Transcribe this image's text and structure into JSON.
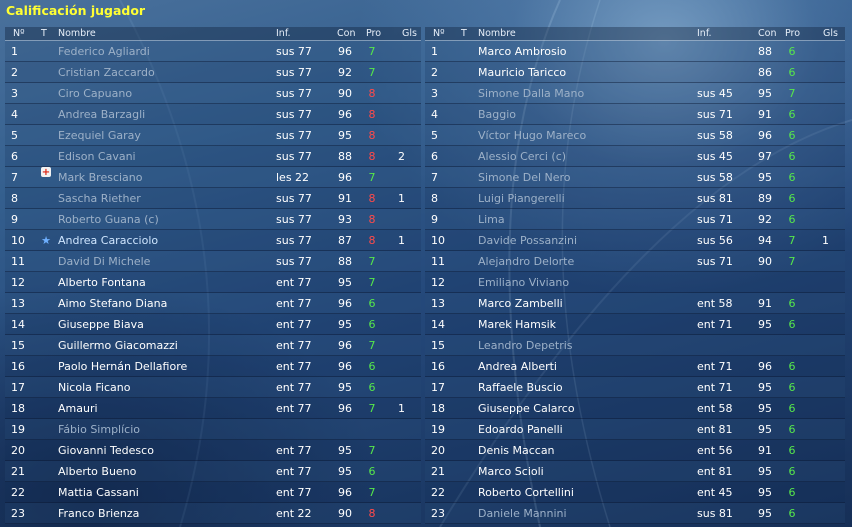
{
  "title": "Calificación jugador",
  "columns": {
    "num": "Nº",
    "t": "T",
    "name": "Nombre",
    "inf": "Inf.",
    "con": "Con",
    "pro": "Pro",
    "gls": "Gls"
  },
  "colors": {
    "title": "#ffff33",
    "pro_high": "#56e84b",
    "pro_low": "#ff4a4a",
    "dim_text": "#9db1c8",
    "selected_text": "#cfe6ff"
  },
  "left_team": [
    {
      "num": "1",
      "icon": "",
      "name": "Federico Agliardi",
      "inf": "sus 77",
      "con": "96",
      "pro": "7",
      "gls": "",
      "style": "dim"
    },
    {
      "num": "2",
      "icon": "",
      "name": "Cristian Zaccardo",
      "inf": "sus 77",
      "con": "92",
      "pro": "7",
      "gls": "",
      "style": "dim"
    },
    {
      "num": "3",
      "icon": "",
      "name": "Ciro Capuano",
      "inf": "sus 77",
      "con": "90",
      "pro": "8",
      "gls": "",
      "style": "dim"
    },
    {
      "num": "4",
      "icon": "",
      "name": "Andrea Barzagli",
      "inf": "sus 77",
      "con": "96",
      "pro": "8",
      "gls": "",
      "style": "dim"
    },
    {
      "num": "5",
      "icon": "",
      "name": "Ezequiel Garay",
      "inf": "sus 77",
      "con": "95",
      "pro": "8",
      "gls": "",
      "style": "dim"
    },
    {
      "num": "6",
      "icon": "",
      "name": "Edison Cavani",
      "inf": "sus 77",
      "con": "88",
      "pro": "8",
      "gls": "2",
      "style": "dim"
    },
    {
      "num": "7",
      "icon": "injury-icon",
      "name": "Mark Bresciano",
      "inf": "les 22",
      "con": "96",
      "pro": "7",
      "gls": "",
      "style": "dim"
    },
    {
      "num": "8",
      "icon": "",
      "name": "Sascha Riether",
      "inf": "sus 77",
      "con": "91",
      "pro": "8",
      "gls": "1",
      "style": "dim"
    },
    {
      "num": "9",
      "icon": "",
      "name": "Roberto Guana (c)",
      "inf": "sus 77",
      "con": "93",
      "pro": "8",
      "gls": "",
      "style": "dim"
    },
    {
      "num": "10",
      "icon": "star-icon",
      "name": "Andrea Caracciolo",
      "inf": "sus 77",
      "con": "87",
      "pro": "8",
      "gls": "1",
      "style": "sel"
    },
    {
      "num": "11",
      "icon": "",
      "name": "David Di Michele",
      "inf": "sus 77",
      "con": "88",
      "pro": "7",
      "gls": "",
      "style": "dim"
    },
    {
      "num": "12",
      "icon": "",
      "name": "Alberto Fontana",
      "inf": "ent 77",
      "con": "95",
      "pro": "7",
      "gls": "",
      "style": "bright"
    },
    {
      "num": "13",
      "icon": "",
      "name": "Aimo Stefano Diana",
      "inf": "ent 77",
      "con": "96",
      "pro": "6",
      "gls": "",
      "style": "bright"
    },
    {
      "num": "14",
      "icon": "",
      "name": "Giuseppe Biava",
      "inf": "ent 77",
      "con": "95",
      "pro": "6",
      "gls": "",
      "style": "bright"
    },
    {
      "num": "15",
      "icon": "",
      "name": "Guillermo Giacomazzi",
      "inf": "ent 77",
      "con": "96",
      "pro": "7",
      "gls": "",
      "style": "bright"
    },
    {
      "num": "16",
      "icon": "",
      "name": "Paolo Hernán Dellafiore",
      "inf": "ent 77",
      "con": "96",
      "pro": "6",
      "gls": "",
      "style": "bright"
    },
    {
      "num": "17",
      "icon": "",
      "name": "Nicola Ficano",
      "inf": "ent 77",
      "con": "95",
      "pro": "6",
      "gls": "",
      "style": "bright"
    },
    {
      "num": "18",
      "icon": "",
      "name": "Amauri",
      "inf": "ent 77",
      "con": "96",
      "pro": "7",
      "gls": "1",
      "style": "bright"
    },
    {
      "num": "19",
      "icon": "",
      "name": "Fábio Simplício",
      "inf": "",
      "con": "",
      "pro": "",
      "gls": "",
      "style": "dim"
    },
    {
      "num": "20",
      "icon": "",
      "name": "Giovanni Tedesco",
      "inf": "ent 77",
      "con": "95",
      "pro": "7",
      "gls": "",
      "style": "bright"
    },
    {
      "num": "21",
      "icon": "",
      "name": "Alberto Bueno",
      "inf": "ent 77",
      "con": "95",
      "pro": "6",
      "gls": "",
      "style": "bright"
    },
    {
      "num": "22",
      "icon": "",
      "name": "Mattia Cassani",
      "inf": "ent 77",
      "con": "96",
      "pro": "7",
      "gls": "",
      "style": "bright"
    },
    {
      "num": "23",
      "icon": "",
      "name": "Franco Brienza",
      "inf": "ent 22",
      "con": "90",
      "pro": "8",
      "gls": "",
      "style": "bright"
    }
  ],
  "right_team": [
    {
      "num": "1",
      "icon": "",
      "name": "Marco Ambrosio",
      "inf": "",
      "con": "88",
      "pro": "6",
      "gls": "",
      "style": "bright"
    },
    {
      "num": "2",
      "icon": "",
      "name": "Mauricio Taricco",
      "inf": "",
      "con": "86",
      "pro": "6",
      "gls": "",
      "style": "bright"
    },
    {
      "num": "3",
      "icon": "",
      "name": "Simone Dalla Mano",
      "inf": "sus 45",
      "con": "95",
      "pro": "7",
      "gls": "",
      "style": "dim"
    },
    {
      "num": "4",
      "icon": "",
      "name": "Baggio",
      "inf": "sus 71",
      "con": "91",
      "pro": "6",
      "gls": "",
      "style": "dim"
    },
    {
      "num": "5",
      "icon": "",
      "name": "Víctor Hugo Mareco",
      "inf": "sus 58",
      "con": "96",
      "pro": "6",
      "gls": "",
      "style": "dim"
    },
    {
      "num": "6",
      "icon": "",
      "name": "Alessio Cerci (c)",
      "inf": "sus 45",
      "con": "97",
      "pro": "6",
      "gls": "",
      "style": "dim"
    },
    {
      "num": "7",
      "icon": "",
      "name": "Simone Del Nero",
      "inf": "sus 58",
      "con": "95",
      "pro": "6",
      "gls": "",
      "style": "dim"
    },
    {
      "num": "8",
      "icon": "",
      "name": "Luigi Piangerelli",
      "inf": "sus 81",
      "con": "89",
      "pro": "6",
      "gls": "",
      "style": "dim"
    },
    {
      "num": "9",
      "icon": "",
      "name": "Lima",
      "inf": "sus 71",
      "con": "92",
      "pro": "6",
      "gls": "",
      "style": "dim"
    },
    {
      "num": "10",
      "icon": "",
      "name": "Davide Possanzini",
      "inf": "sus 56",
      "con": "94",
      "pro": "7",
      "gls": "1",
      "style": "dim"
    },
    {
      "num": "11",
      "icon": "",
      "name": "Alejandro Delorte",
      "inf": "sus 71",
      "con": "90",
      "pro": "7",
      "gls": "",
      "style": "dim"
    },
    {
      "num": "12",
      "icon": "",
      "name": "Emiliano Viviano",
      "inf": "",
      "con": "",
      "pro": "",
      "gls": "",
      "style": "dim"
    },
    {
      "num": "13",
      "icon": "",
      "name": "Marco Zambelli",
      "inf": "ent 58",
      "con": "91",
      "pro": "6",
      "gls": "",
      "style": "bright"
    },
    {
      "num": "14",
      "icon": "",
      "name": "Marek Hamsik",
      "inf": "ent 71",
      "con": "95",
      "pro": "6",
      "gls": "",
      "style": "bright"
    },
    {
      "num": "15",
      "icon": "",
      "name": "Leandro Depetris",
      "inf": "",
      "con": "",
      "pro": "",
      "gls": "",
      "style": "dim"
    },
    {
      "num": "16",
      "icon": "",
      "name": "Andrea Alberti",
      "inf": "ent 71",
      "con": "96",
      "pro": "6",
      "gls": "",
      "style": "bright"
    },
    {
      "num": "17",
      "icon": "",
      "name": "Raffaele Buscio",
      "inf": "ent 71",
      "con": "95",
      "pro": "6",
      "gls": "",
      "style": "bright"
    },
    {
      "num": "18",
      "icon": "",
      "name": "Giuseppe Calarco",
      "inf": "ent 58",
      "con": "95",
      "pro": "6",
      "gls": "",
      "style": "bright"
    },
    {
      "num": "19",
      "icon": "",
      "name": "Edoardo Panelli",
      "inf": "ent 81",
      "con": "95",
      "pro": "6",
      "gls": "",
      "style": "bright"
    },
    {
      "num": "20",
      "icon": "",
      "name": "Denis Maccan",
      "inf": "ent 56",
      "con": "91",
      "pro": "6",
      "gls": "",
      "style": "bright"
    },
    {
      "num": "21",
      "icon": "",
      "name": "Marco Scioli",
      "inf": "ent 81",
      "con": "95",
      "pro": "6",
      "gls": "",
      "style": "bright"
    },
    {
      "num": "22",
      "icon": "",
      "name": "Roberto Cortellini",
      "inf": "ent 45",
      "con": "95",
      "pro": "6",
      "gls": "",
      "style": "bright"
    },
    {
      "num": "23",
      "icon": "",
      "name": "Daniele Mannini",
      "inf": "sus 81",
      "con": "95",
      "pro": "6",
      "gls": "",
      "style": "dim"
    }
  ]
}
